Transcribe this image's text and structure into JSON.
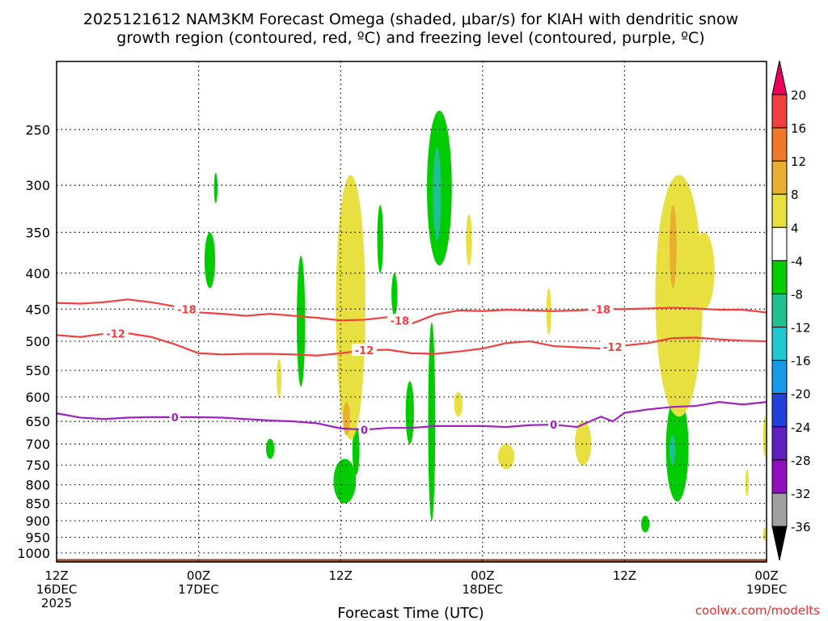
{
  "chart_data": {
    "type": "heatmap",
    "title_line1": "2025121612 NAM3KM Forecast Omega (shaded, μbar/s) for KIAH with dendritic snow",
    "title_line2": "growth region (contoured, red, ºC) and freezing level (contoured, purple, ºC)",
    "xlabel": "Forecast Time (UTC)",
    "credit": "coolwx.com/modelts",
    "y_scale": "log-pressure",
    "y_ticks": [
      250,
      300,
      350,
      400,
      450,
      500,
      550,
      600,
      650,
      700,
      750,
      800,
      850,
      900,
      950,
      1000
    ],
    "y_range_hpa": [
      200,
      1030
    ],
    "x_range_hours": [
      0,
      60
    ],
    "x_ticks": [
      {
        "hour": 0,
        "lines": [
          "12Z",
          "16DEC",
          "2025"
        ]
      },
      {
        "hour": 12,
        "lines": [
          "00Z",
          "17DEC"
        ]
      },
      {
        "hour": 24,
        "lines": [
          "12Z"
        ]
      },
      {
        "hour": 36,
        "lines": [
          "00Z",
          "18DEC"
        ]
      },
      {
        "hour": 48,
        "lines": [
          "12Z"
        ]
      },
      {
        "hour": 60,
        "lines": [
          "00Z",
          "19DEC"
        ]
      }
    ],
    "grid": true,
    "colorbar": {
      "ticks": [
        "20",
        "16",
        "12",
        "8",
        "4",
        "-4",
        "-8",
        "-12",
        "-16",
        "-20",
        "-24",
        "-28",
        "-32",
        "-36"
      ],
      "colors": [
        "#e8005a",
        "#f04040",
        "#f07828",
        "#e8b030",
        "#e8e040",
        "#ffffff",
        "#00cc00",
        "#20c090",
        "#20c8d0",
        "#1898e8",
        "#2040d8",
        "#6020c0",
        "#9010c0",
        "#a0a0a0",
        "#000000"
      ]
    },
    "contours": [
      {
        "name": "-18",
        "color": "#f04040",
        "x": [
          0,
          2,
          4,
          6,
          8,
          10,
          12,
          14,
          16,
          18,
          20,
          22,
          24,
          26,
          28,
          30,
          32,
          34,
          36,
          38,
          40,
          42,
          44,
          46,
          48,
          50,
          52,
          54,
          56,
          58,
          60
        ],
        "y": [
          441,
          442,
          440,
          436,
          440,
          446,
          455,
          457,
          460,
          457,
          460,
          463,
          467,
          466,
          462,
          472,
          458,
          452,
          453,
          451,
          452,
          453,
          452,
          450,
          450,
          449,
          448,
          449,
          451,
          451,
          455
        ],
        "labels": [
          {
            "x": 11,
            "text": "-18"
          },
          {
            "x": 29,
            "text": "-18"
          },
          {
            "x": 46,
            "text": "-18"
          }
        ]
      },
      {
        "name": "-12",
        "color": "#f04040",
        "x": [
          0,
          2,
          4,
          6,
          8,
          10,
          12,
          14,
          16,
          18,
          20,
          22,
          24,
          26,
          28,
          30,
          32,
          34,
          36,
          38,
          40,
          42,
          44,
          46,
          48,
          50,
          52,
          54,
          56,
          58,
          60
        ],
        "y": [
          490,
          493,
          488,
          487,
          493,
          505,
          520,
          522,
          521,
          521,
          522,
          524,
          520,
          515,
          514,
          520,
          521,
          517,
          512,
          503,
          500,
          508,
          510,
          512,
          507,
          503,
          495,
          494,
          497,
          499,
          500
        ],
        "labels": [
          {
            "x": 5,
            "text": "-12"
          },
          {
            "x": 26,
            "text": "-12"
          },
          {
            "x": 47,
            "text": "-12"
          }
        ]
      },
      {
        "name": "0",
        "color": "#a020c0",
        "x": [
          0,
          2,
          4,
          6,
          8,
          10,
          12,
          14,
          16,
          18,
          20,
          22,
          24,
          26,
          28,
          30,
          32,
          34,
          36,
          38,
          40,
          42,
          44,
          46,
          47,
          48,
          50,
          52,
          54,
          56,
          58,
          60
        ],
        "y": [
          633,
          642,
          645,
          642,
          641,
          641,
          641,
          642,
          645,
          648,
          650,
          654,
          665,
          668,
          664,
          664,
          660,
          660,
          660,
          662,
          658,
          657,
          662,
          640,
          650,
          632,
          625,
          620,
          618,
          610,
          615,
          610
        ],
        "labels": [
          {
            "x": 10,
            "text": "0"
          },
          {
            "x": 26,
            "text": "0"
          },
          {
            "x": 42,
            "text": "0"
          }
        ]
      }
    ],
    "shaded_regions": [
      {
        "value": -8,
        "color": "#00cc00",
        "x": [
          13.3,
          13.6
        ],
        "y": [
          288,
          318
        ]
      },
      {
        "value": -8,
        "color": "#00cc00",
        "x": [
          12.5,
          13.4
        ],
        "y": [
          350,
          420
        ]
      },
      {
        "value": -8,
        "color": "#00cc00",
        "x": [
          20.3,
          21.0
        ],
        "y": [
          378,
          580
        ]
      },
      {
        "value": -8,
        "color": "#00cc00",
        "x": [
          17.7,
          18.4
        ],
        "y": [
          688,
          735
        ]
      },
      {
        "value": -8,
        "color": "#00cc00",
        "x": [
          23.4,
          25.3
        ],
        "y": [
          735,
          850
        ]
      },
      {
        "value": -8,
        "color": "#00cc00",
        "x": [
          25.0,
          25.6
        ],
        "y": [
          660,
          775
        ]
      },
      {
        "value": -8,
        "color": "#00cc00",
        "x": [
          27.1,
          27.6
        ],
        "y": [
          320,
          400
        ]
      },
      {
        "value": -8,
        "color": "#00cc00",
        "x": [
          28.3,
          28.8
        ],
        "y": [
          400,
          460
        ]
      },
      {
        "value": -8,
        "color": "#00cc00",
        "x": [
          29.5,
          30.2
        ],
        "y": [
          570,
          700
        ]
      },
      {
        "value": -8,
        "color": "#00cc00",
        "x": [
          31.3,
          33.4
        ],
        "y": [
          235,
          390
        ]
      },
      {
        "value": -8,
        "color": "#00cc00",
        "x": [
          31.4,
          32.0
        ],
        "y": [
          470,
          900
        ]
      },
      {
        "value": -8,
        "color": "#00cc00",
        "x": [
          51.5,
          53.4
        ],
        "y": [
          595,
          845
        ]
      },
      {
        "value": -8,
        "color": "#00cc00",
        "x": [
          49.4,
          50.1
        ],
        "y": [
          885,
          935
        ]
      },
      {
        "value": -12,
        "color": "#20c090",
        "x": [
          31.8,
          32.5
        ],
        "y": [
          265,
          360
        ]
      },
      {
        "value": -12,
        "color": "#20c090",
        "x": [
          51.8,
          52.3
        ],
        "y": [
          680,
          750
        ]
      },
      {
        "value": 4,
        "color": "#e8e040",
        "x": [
          18.6,
          19.0
        ],
        "y": [
          530,
          600
        ]
      },
      {
        "value": 4,
        "color": "#e8e040",
        "x": [
          23.6,
          26.1
        ],
        "y": [
          290,
          690
        ]
      },
      {
        "value": 4,
        "color": "#e8e040",
        "x": [
          33.6,
          34.3
        ],
        "y": [
          590,
          640
        ]
      },
      {
        "value": 4,
        "color": "#e8e040",
        "x": [
          34.6,
          35.1
        ],
        "y": [
          330,
          390
        ]
      },
      {
        "value": 4,
        "color": "#e8e040",
        "x": [
          37.3,
          38.7
        ],
        "y": [
          700,
          760
        ]
      },
      {
        "value": 4,
        "color": "#e8e040",
        "x": [
          41.4,
          41.8
        ],
        "y": [
          420,
          490
        ]
      },
      {
        "value": 4,
        "color": "#e8e040",
        "x": [
          43.8,
          45.2
        ],
        "y": [
          650,
          750
        ]
      },
      {
        "value": 4,
        "color": "#e8e040",
        "x": [
          50.6,
          54.6
        ],
        "y": [
          290,
          640
        ]
      },
      {
        "value": 4,
        "color": "#e8e040",
        "x": [
          53.8,
          55.6
        ],
        "y": [
          350,
          450
        ]
      },
      {
        "value": 4,
        "color": "#e8e040",
        "x": [
          58.2,
          58.5
        ],
        "y": [
          760,
          830
        ]
      },
      {
        "value": 4,
        "color": "#e8e040",
        "x": [
          59.7,
          60.0
        ],
        "y": [
          640,
          730
        ]
      },
      {
        "value": 4,
        "color": "#e8e040",
        "x": [
          59.7,
          60.0
        ],
        "y": [
          920,
          960
        ]
      },
      {
        "value": 8,
        "color": "#e8b030",
        "x": [
          24.2,
          24.8
        ],
        "y": [
          610,
          680
        ]
      },
      {
        "value": 8,
        "color": "#e8b030",
        "x": [
          51.8,
          52.4
        ],
        "y": [
          320,
          420
        ]
      }
    ],
    "terrain": {
      "color": "#a0522d",
      "surface_hpa": 1020
    }
  }
}
